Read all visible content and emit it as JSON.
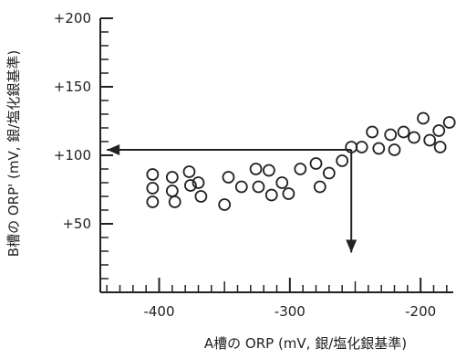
{
  "chart_data": {
    "type": "scatter",
    "title": "",
    "xlabel": "A槽の ORP (mV, 銀/塩化銀基準)",
    "ylabel": "B槽の ORP' (mV, 銀/塩化銀基準)",
    "xlim": [
      -445,
      -175
    ],
    "ylim": [
      0,
      200
    ],
    "x_ticks": [
      -400,
      -300,
      -200
    ],
    "x_tick_labels": [
      "-400",
      "-300",
      "-200"
    ],
    "y_ticks": [
      50,
      100,
      150,
      200
    ],
    "y_tick_labels": [
      "+50",
      "+100",
      "+150",
      "+200"
    ],
    "grid": false,
    "marker": "open-circle",
    "points": [
      {
        "x": -405,
        "y": 86
      },
      {
        "x": -405,
        "y": 76
      },
      {
        "x": -405,
        "y": 66
      },
      {
        "x": -390,
        "y": 84
      },
      {
        "x": -390,
        "y": 74
      },
      {
        "x": -388,
        "y": 66
      },
      {
        "x": -377,
        "y": 88
      },
      {
        "x": -376,
        "y": 78
      },
      {
        "x": -370,
        "y": 80
      },
      {
        "x": -368,
        "y": 70
      },
      {
        "x": -350,
        "y": 64
      },
      {
        "x": -347,
        "y": 84
      },
      {
        "x": -337,
        "y": 77
      },
      {
        "x": -326,
        "y": 90
      },
      {
        "x": -324,
        "y": 77
      },
      {
        "x": -316,
        "y": 89
      },
      {
        "x": -314,
        "y": 71
      },
      {
        "x": -306,
        "y": 80
      },
      {
        "x": -301,
        "y": 72
      },
      {
        "x": -292,
        "y": 90
      },
      {
        "x": -280,
        "y": 94
      },
      {
        "x": -277,
        "y": 77
      },
      {
        "x": -270,
        "y": 87
      },
      {
        "x": -260,
        "y": 96
      },
      {
        "x": -253,
        "y": 106
      },
      {
        "x": -245,
        "y": 106
      },
      {
        "x": -237,
        "y": 117
      },
      {
        "x": -232,
        "y": 105
      },
      {
        "x": -223,
        "y": 115
      },
      {
        "x": -220,
        "y": 104
      },
      {
        "x": -213,
        "y": 117
      },
      {
        "x": -205,
        "y": 113
      },
      {
        "x": -198,
        "y": 127
      },
      {
        "x": -193,
        "y": 111
      },
      {
        "x": -186,
        "y": 118
      },
      {
        "x": -185,
        "y": 106
      },
      {
        "x": -178,
        "y": 124
      }
    ],
    "annotations": [
      {
        "kind": "arrow",
        "from": [
          -253,
          104
        ],
        "to": [
          -440,
          104
        ]
      },
      {
        "kind": "arrow",
        "from": [
          -253,
          104
        ],
        "to": [
          -253,
          29
        ]
      }
    ]
  }
}
